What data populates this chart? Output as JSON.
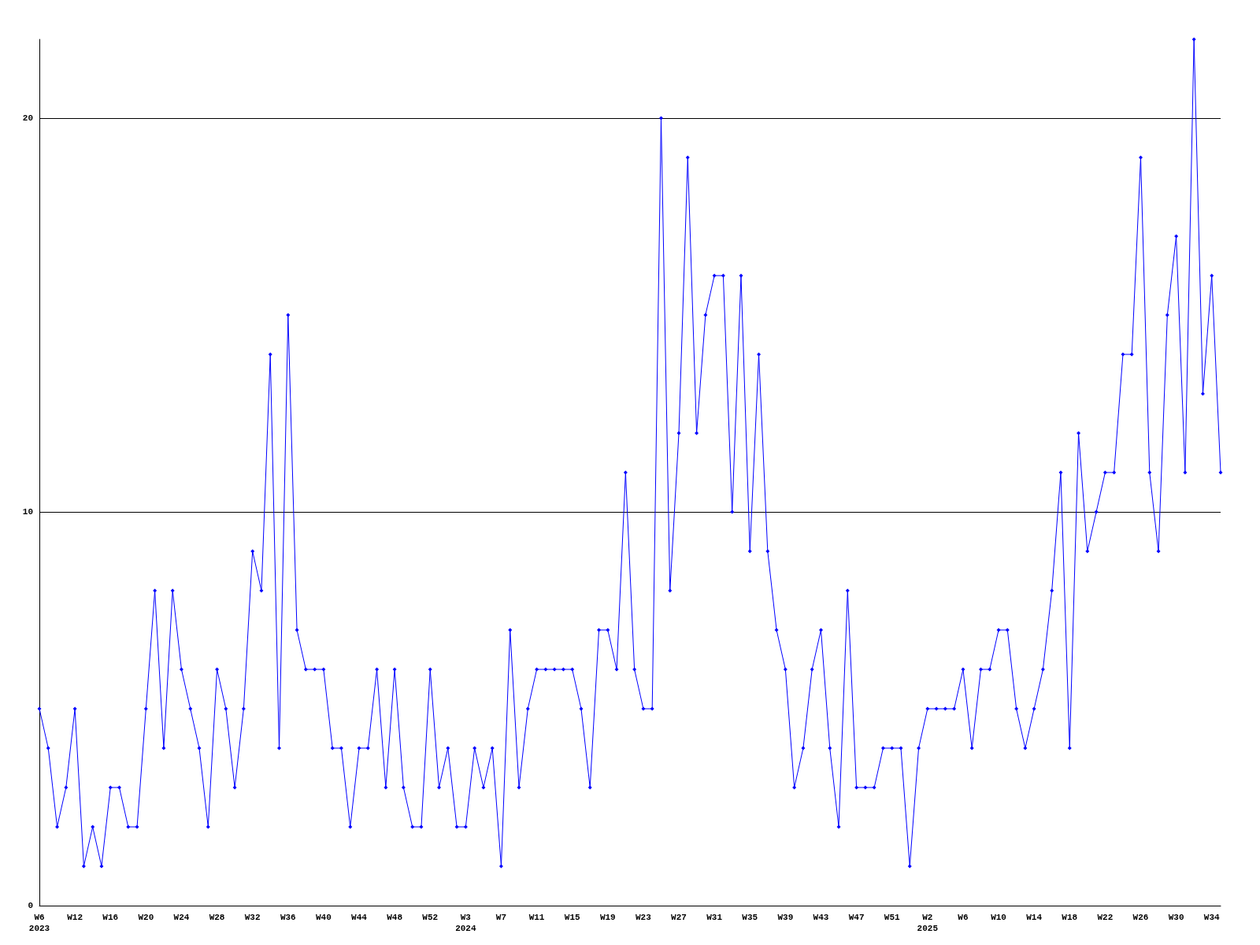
{
  "chart_data": {
    "type": "line",
    "categories": [
      "W6\n2023",
      null,
      null,
      null,
      "W12",
      null,
      null,
      null,
      "W16",
      null,
      null,
      null,
      "W20",
      null,
      null,
      null,
      "W24",
      null,
      null,
      null,
      "W28",
      null,
      null,
      null,
      "W32",
      null,
      null,
      null,
      "W36",
      null,
      null,
      null,
      "W40",
      null,
      null,
      null,
      "W44",
      null,
      null,
      null,
      "W48",
      null,
      null,
      null,
      "W52",
      null,
      null,
      null,
      "W3\n2024",
      null,
      null,
      null,
      "W7",
      null,
      null,
      null,
      "W11",
      null,
      null,
      null,
      "W15",
      null,
      null,
      null,
      "W19",
      null,
      null,
      null,
      "W23",
      null,
      null,
      null,
      "W27",
      null,
      null,
      null,
      "W31",
      null,
      null,
      null,
      "W35",
      null,
      null,
      null,
      "W39",
      null,
      null,
      null,
      "W43",
      null,
      null,
      null,
      "W47",
      null,
      null,
      null,
      "W51",
      null,
      null,
      null,
      "W2\n2025",
      null,
      null,
      null,
      "W6",
      null,
      null,
      null,
      "W10",
      null,
      null,
      null,
      "W14",
      null,
      null,
      null,
      "W18",
      null,
      null,
      null,
      "W22",
      null,
      null,
      null,
      "W26",
      null,
      null,
      null,
      "W30",
      null,
      null,
      null,
      "W34",
      null
    ],
    "series": [
      {
        "color": "#0000ff",
        "values": [
          5,
          4,
          2,
          3,
          5,
          1,
          2,
          1,
          3,
          3,
          2,
          2,
          5,
          8,
          4,
          8,
          6,
          5,
          4,
          2,
          6,
          5,
          3,
          5,
          9,
          8,
          14,
          4,
          15,
          7,
          6,
          6,
          6,
          4,
          4,
          2,
          4,
          4,
          6,
          3,
          6,
          3,
          2,
          2,
          6,
          3,
          4,
          2,
          2,
          4,
          3,
          4,
          1,
          7,
          3,
          5,
          6,
          6,
          6,
          6,
          6,
          5,
          3,
          7,
          7,
          6,
          11,
          6,
          5,
          5,
          20,
          8,
          12,
          19,
          12,
          15,
          16,
          16,
          10,
          16,
          9,
          14,
          9,
          7,
          6,
          3,
          4,
          6,
          7,
          4,
          2,
          8,
          3,
          3,
          3,
          4,
          4,
          4,
          1,
          4,
          5,
          5,
          5,
          5,
          6,
          4,
          6,
          6,
          7,
          7,
          5,
          4,
          5,
          6,
          8,
          11,
          4,
          12,
          9,
          10,
          11,
          11,
          14,
          14,
          19,
          11,
          9,
          15,
          17,
          11,
          22,
          13,
          16,
          11
        ]
      }
    ],
    "ylim": [
      0,
      22
    ],
    "yticks": [
      0,
      10,
      20
    ],
    "grid": "y",
    "marker": "diamond",
    "line_style": "solid"
  }
}
